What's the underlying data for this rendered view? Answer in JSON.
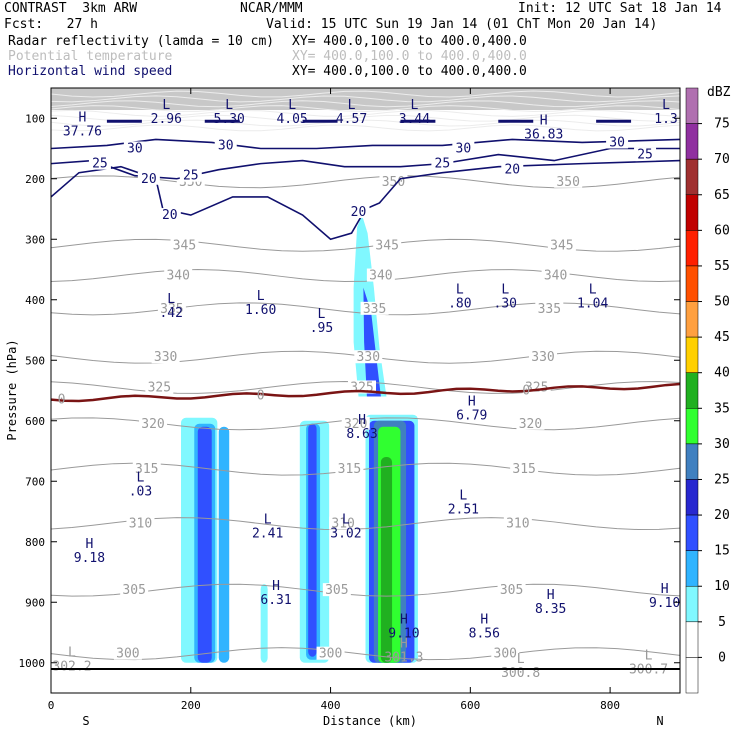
{
  "header": {
    "model": "CONTRAST  3km ARW",
    "org": "NCAR/MMM",
    "init": "Init: 12 UTC Sat 18 Jan 14",
    "fcst": "Fcst:   27 h",
    "valid": "Valid: 15 UTC Sun 19 Jan 14 (01 ChT Mon 20 Jan 14)",
    "field1": "Radar reflectivity (lamda = 10 cm)",
    "field1_xy": "XY= 400.0,100.0 to 400.0,400.0",
    "field2": "Potential temperature",
    "field2_xy": "XY= 400.0,100.0 to 400.0,400.0",
    "field3": "Horizontal wind speed",
    "field3_xy": "XY= 400.0,100.0 to 400.0,400.0"
  },
  "chart_data": {
    "type": "cross-section",
    "xlabel": "Distance (km)",
    "ylabel": "Pressure (hPa)",
    "xlim": [
      0,
      900
    ],
    "ylim": [
      1050,
      50
    ],
    "x_ticks": [
      "0",
      "200",
      "400",
      "600",
      "800"
    ],
    "y_ticks": [
      "100",
      "200",
      "300",
      "400",
      "500",
      "600",
      "700",
      "800",
      "900",
      "1000"
    ],
    "x_end_labels": {
      "left": "S",
      "right": "N"
    },
    "colorbar": {
      "unit": "dBZ",
      "levels": [
        "0",
        "5",
        "10",
        "15",
        "20",
        "25",
        "30",
        "35",
        "40",
        "45",
        "50",
        "55",
        "60",
        "65",
        "70",
        "75"
      ],
      "colors": [
        "#ffffff",
        "#80f8ff",
        "#30b4ff",
        "#3050ff",
        "#2828d0",
        "#4080c0",
        "#30ff30",
        "#20b020",
        "#ffd000",
        "#ffa040",
        "#ff5000",
        "#ff2000",
        "#c00000",
        "#a03030",
        "#9030a0",
        "#b070b0"
      ]
    },
    "wind_contours": [
      "20",
      "25",
      "30"
    ],
    "theta_labels": [
      "300",
      "305",
      "310",
      "315",
      "320",
      "325",
      "330",
      "335",
      "340",
      "345",
      "350"
    ],
    "zero_line_label": "0",
    "annotations": [
      {
        "m": "L",
        "v": "2.96",
        "c": "navy",
        "x": 165,
        "p": 85
      },
      {
        "m": "L",
        "v": "5.30",
        "c": "navy",
        "x": 255,
        "p": 85
      },
      {
        "m": "L",
        "v": "4.05",
        "c": "navy",
        "x": 345,
        "p": 85
      },
      {
        "m": "L",
        "v": "4.57",
        "c": "navy",
        "x": 430,
        "p": 85
      },
      {
        "m": "L",
        "v": "3.44",
        "c": "navy",
        "x": 520,
        "p": 85
      },
      {
        "m": "L",
        "v": "1.3",
        "c": "navy",
        "x": 880,
        "p": 85
      },
      {
        "m": "H",
        "v": "37.76",
        "c": "navy",
        "x": 45,
        "p": 105
      },
      {
        "m": "H",
        "v": "36.83",
        "c": "navy",
        "x": 705,
        "p": 110
      },
      {
        "m": "L",
        "v": ".80",
        "c": "navy",
        "x": 585,
        "p": 390
      },
      {
        "m": "L",
        "v": ".30",
        "c": "navy",
        "x": 650,
        "p": 390
      },
      {
        "m": "L",
        "v": "1.04",
        "c": "navy",
        "x": 775,
        "p": 390
      },
      {
        "m": "L",
        "v": ".42",
        "c": "navy",
        "x": 172,
        "p": 405
      },
      {
        "m": "L",
        "v": "1.60",
        "c": "navy",
        "x": 300,
        "p": 400
      },
      {
        "m": "L",
        "v": ".95",
        "c": "navy",
        "x": 387,
        "p": 430
      },
      {
        "m": "H",
        "v": "6.79",
        "c": "navy",
        "x": 602,
        "p": 575
      },
      {
        "m": "H",
        "v": "8.63",
        "c": "navy",
        "x": 445,
        "p": 605
      },
      {
        "m": "L",
        "v": ".03",
        "c": "navy",
        "x": 128,
        "p": 700
      },
      {
        "m": "L",
        "v": "2.51",
        "c": "navy",
        "x": 590,
        "p": 730
      },
      {
        "m": "L",
        "v": "2.41",
        "c": "navy",
        "x": 310,
        "p": 770
      },
      {
        "m": "L",
        "v": "3.02",
        "c": "navy",
        "x": 422,
        "p": 770
      },
      {
        "m": "H",
        "v": "9.18",
        "c": "navy",
        "x": 55,
        "p": 810
      },
      {
        "m": "H",
        "v": "6.31",
        "c": "navy",
        "x": 322,
        "p": 880
      },
      {
        "m": "H",
        "v": "8.35",
        "c": "navy",
        "x": 715,
        "p": 895
      },
      {
        "m": "H",
        "v": "9.10",
        "c": "navy",
        "x": 878,
        "p": 885
      },
      {
        "m": "H",
        "v": "9.10",
        "c": "navy",
        "x": 505,
        "p": 935
      },
      {
        "m": "H",
        "v": "8.56",
        "c": "navy",
        "x": 620,
        "p": 935
      },
      {
        "m": "L",
        "v": "302.2",
        "c": "gray",
        "x": 30,
        "p": 990
      },
      {
        "m": "H",
        "v": "301.3",
        "c": "gray",
        "x": 505,
        "p": 975
      },
      {
        "m": "L",
        "v": "300.8",
        "c": "gray",
        "x": 672,
        "p": 1000
      },
      {
        "m": "L",
        "v": "300.7",
        "c": "gray",
        "x": 855,
        "p": 995
      }
    ]
  }
}
